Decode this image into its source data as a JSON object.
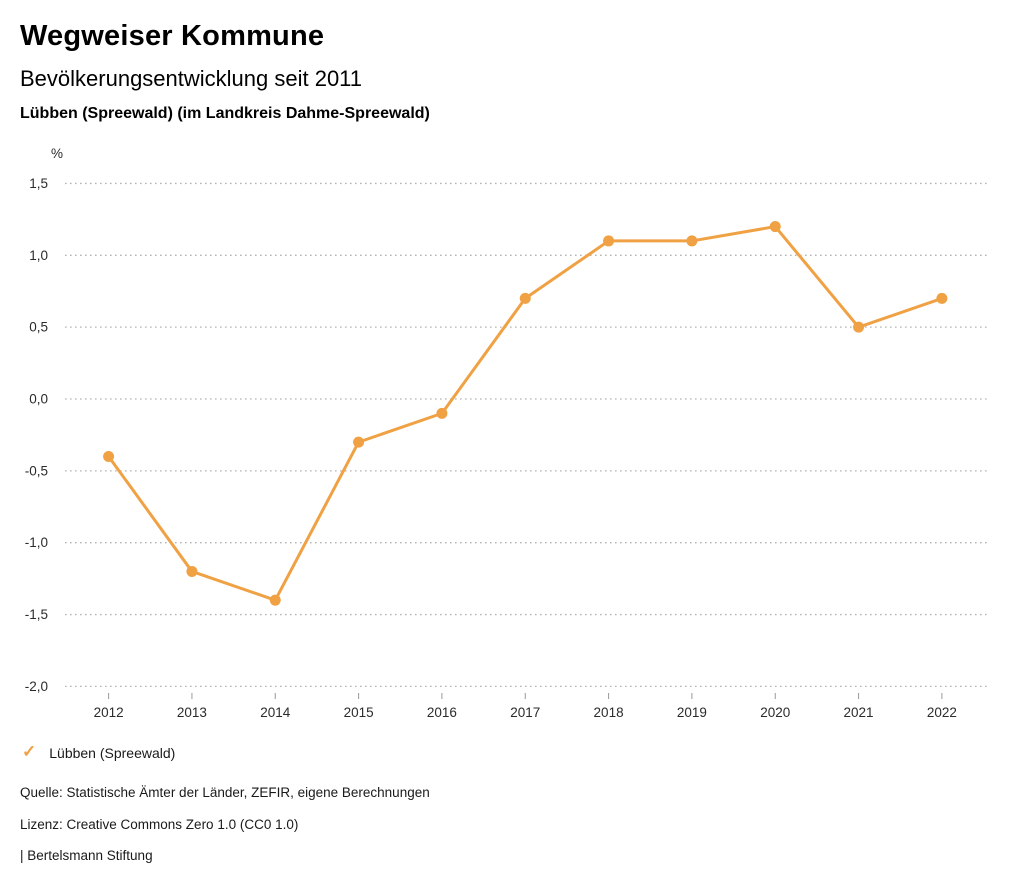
{
  "header": {
    "title": "Wegweiser Kommune",
    "subtitle": "Bevölkerungsentwicklung seit 2011",
    "region_line": "Lübben (Spreewald) (im Landkreis Dahme-Spreewald)"
  },
  "chart_data": {
    "type": "line",
    "title": "Bevölkerungsentwicklung seit 2011",
    "subtitle": "Lübben (Spreewald) (im Landkreis Dahme-Spreewald)",
    "unit_label": "%",
    "categories": [
      "2012",
      "2013",
      "2014",
      "2015",
      "2016",
      "2017",
      "2018",
      "2019",
      "2020",
      "2021",
      "2022"
    ],
    "series": [
      {
        "name": "Lübben (Spreewald)",
        "values": [
          -0.4,
          -1.2,
          -1.4,
          -0.3,
          -0.1,
          0.7,
          1.1,
          1.1,
          1.2,
          0.5,
          0.7
        ]
      }
    ],
    "ylim": [
      -2.0,
      1.5
    ],
    "yticks": [
      {
        "value": 1.5,
        "label": "1,5"
      },
      {
        "value": 1.0,
        "label": "1,0"
      },
      {
        "value": 0.5,
        "label": "0,5"
      },
      {
        "value": 0.0,
        "label": "0,0"
      },
      {
        "value": -0.5,
        "label": "-0,5"
      },
      {
        "value": -1.0,
        "label": "-1,0"
      },
      {
        "value": -1.5,
        "label": "-1,5"
      },
      {
        "value": -2.0,
        "label": "-2,0"
      }
    ],
    "grid": "horizontal-dotted",
    "legend_position": "bottom-left"
  },
  "legend": {
    "check_icon": "✓",
    "label": "Lübben (Spreewald)"
  },
  "footer": {
    "source": "Quelle: Statistische Ämter der Länder, ZEFIR, eigene Berechnungen",
    "license": "Lizenz: Creative Commons Zero 1.0 (CC0 1.0)",
    "attribution": "| Bertelsmann Stiftung"
  },
  "colors": {
    "accent": "#F0A143",
    "grid": "#b3b3b3",
    "axis_tick": "#999999",
    "tick_text": "#2b2b2b",
    "text": "#1a1a1a",
    "background": "#ffffff"
  }
}
